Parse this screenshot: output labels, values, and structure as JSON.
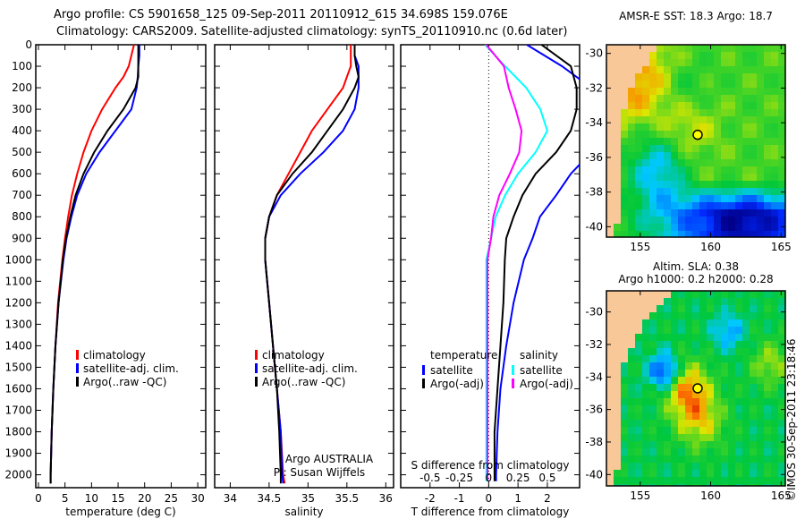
{
  "title_line1": "Argo profile: CS 5901658_125 09-Sep-2011 20110912_615 34.698S 159.076E",
  "title_line2": "Climatology: CARS2009. Satellite-adjusted climatology: synTS_20110910.nc (0.6d later)",
  "colors": {
    "clim": "#ff0000",
    "sat": "#0000ff",
    "argo": "#000000",
    "s_sat": "#00ffff",
    "s_argo": "#ff00ff"
  },
  "chart_data": [
    {
      "type": "line",
      "name": "temperature",
      "xlabel": "temperature (deg C)",
      "ylabel": "",
      "xlim": [
        -0.5,
        31.5
      ],
      "ylim": [
        2060,
        0
      ],
      "xticks": [
        "0",
        "5",
        "10",
        "15",
        "20",
        "25",
        "30"
      ],
      "xtick_values": [
        0,
        5,
        10,
        15,
        20,
        25,
        30
      ],
      "yticks": [
        "0",
        "100",
        "200",
        "300",
        "400",
        "500",
        "600",
        "700",
        "800",
        "900",
        "1000",
        "1100",
        "1200",
        "1300",
        "1400",
        "1500",
        "1600",
        "1700",
        "1800",
        "1900",
        "2000"
      ],
      "depth": [
        0,
        50,
        100,
        150,
        200,
        300,
        400,
        500,
        600,
        700,
        800,
        900,
        1000,
        1200,
        1400,
        1600,
        1800,
        2000,
        2040
      ],
      "series": [
        {
          "name": "climatology",
          "color": "#ff0000",
          "values": [
            18,
            17.5,
            17,
            16,
            14.5,
            12,
            10,
            8.5,
            7.3,
            6.3,
            5.6,
            5.0,
            4.5,
            3.7,
            3.2,
            2.8,
            2.5,
            2.3,
            2.3
          ]
        },
        {
          "name": "satellite-adj. clim.",
          "color": "#0000ff",
          "values": [
            19,
            19,
            18.8,
            18.7,
            18.5,
            17.5,
            14.5,
            11.5,
            9,
            7.3,
            6.2,
            5.3,
            4.7,
            3.8,
            3.2,
            2.8,
            2.5,
            2.3,
            2.3
          ]
        },
        {
          "name": "Argo(..raw -QC)",
          "color": "#000000",
          "values": [
            18.8,
            18.8,
            18.8,
            18.8,
            18.3,
            16,
            13,
            10.5,
            8.5,
            7,
            6,
            5.2,
            4.6,
            3.8,
            3.2,
            2.8,
            2.5,
            2.3,
            2.3
          ]
        }
      ],
      "legend_position": "bottom-center"
    },
    {
      "type": "line",
      "name": "salinity",
      "xlabel": "salinity",
      "xlim": [
        33.8,
        36.1
      ],
      "ylim": [
        2060,
        0
      ],
      "xticks": [
        "34",
        "34.5",
        "35",
        "35.5",
        "36"
      ],
      "xtick_values": [
        34,
        34.5,
        35,
        35.5,
        36
      ],
      "depth": [
        0,
        50,
        100,
        150,
        200,
        300,
        400,
        500,
        600,
        700,
        800,
        900,
        1000,
        1200,
        1400,
        1600,
        1800,
        2000,
        2040
      ],
      "series": [
        {
          "name": "climatology",
          "color": "#ff0000",
          "values": [
            35.55,
            35.55,
            35.55,
            35.5,
            35.45,
            35.25,
            35.05,
            34.9,
            34.75,
            34.6,
            34.5,
            34.45,
            34.45,
            34.5,
            34.55,
            34.6,
            34.65,
            34.68,
            34.7
          ]
        },
        {
          "name": "satellite-adj. clim.",
          "color": "#0000ff",
          "values": [
            35.6,
            35.6,
            35.65,
            35.65,
            35.65,
            35.6,
            35.45,
            35.2,
            34.9,
            34.65,
            34.5,
            34.45,
            34.45,
            34.5,
            34.55,
            34.6,
            34.65,
            34.67,
            34.68
          ]
        },
        {
          "name": "Argo(..raw -QC)",
          "color": "#000000",
          "values": [
            35.6,
            35.6,
            35.62,
            35.65,
            35.6,
            35.45,
            35.25,
            35.05,
            34.8,
            34.6,
            34.5,
            34.45,
            34.45,
            34.5,
            34.55,
            34.6,
            34.63,
            34.65,
            34.65
          ]
        }
      ],
      "annotation": [
        "Argo AUSTRALIA",
        "PI: Susan Wijffels"
      ]
    },
    {
      "type": "line",
      "name": "differences",
      "xlabel": "T difference from climatology",
      "x2label": "S difference from climatology",
      "xlim": [
        -3,
        3.1
      ],
      "x2lim": [
        -0.75,
        0.775
      ],
      "ylim": [
        2060,
        0
      ],
      "xticks": [
        "-2",
        "-1",
        "0",
        "1",
        "2"
      ],
      "xtick_values": [
        -2,
        -1,
        0,
        1,
        2
      ],
      "x2ticks": [
        "-0.5",
        "-0.25",
        "0",
        "0.25",
        "0.5"
      ],
      "x2tick_values": [
        -0.5,
        -0.25,
        0,
        0.25,
        0.5
      ],
      "depth": [
        0,
        100,
        200,
        300,
        400,
        500,
        600,
        700,
        800,
        900,
        1000,
        1200,
        1400,
        1600,
        1800,
        2000,
        2030
      ],
      "series": [
        {
          "name": "satellite",
          "group": "temperature",
          "axis": "T",
          "color": "#0000ff",
          "values": [
            1.3,
            2.5,
            3.5,
            4,
            4.2,
            3.5,
            2.8,
            2.3,
            1.75,
            1.5,
            1.2,
            0.85,
            0.6,
            0.4,
            0.3,
            0.25,
            0.25
          ]
        },
        {
          "name": "Argo(-adj)",
          "group": "temperature",
          "axis": "T",
          "color": "#000000",
          "values": [
            1.8,
            2.8,
            3,
            3,
            2.8,
            2.3,
            1.6,
            1.15,
            0.85,
            0.6,
            0.55,
            0.5,
            0.4,
            0.3,
            0.2,
            0.2,
            0.2
          ]
        },
        {
          "name": "satellite",
          "group": "salinity",
          "axis": "S",
          "color": "#00ffff",
          "values": [
            -0.03,
            0.14,
            0.32,
            0.44,
            0.5,
            0.4,
            0.25,
            0.14,
            0.06,
            0.02,
            -0.02,
            -0.02,
            -0.02,
            -0.02,
            -0.02,
            -0.02,
            -0.02
          ]
        },
        {
          "name": "Argo(-adj)",
          "group": "salinity",
          "axis": "S",
          "color": "#ff00ff",
          "values": [
            -0.02,
            0.13,
            0.17,
            0.23,
            0.28,
            0.26,
            0.18,
            0.09,
            0.04,
            0.02,
            -0.01,
            -0.01,
            -0.01,
            -0.01,
            -0.01,
            -0.01,
            -0.01
          ]
        }
      ],
      "legend_headers": [
        "temperature",
        "salinity"
      ]
    },
    {
      "type": "heatmap",
      "name": "sst-map",
      "title": "AMSR-E SST: 18.3 Argo: 18.7",
      "xticks": [
        "155",
        "160",
        "165"
      ],
      "xtick_values": [
        155,
        160,
        165
      ],
      "yticks": [
        "-30",
        "-32",
        "-34",
        "-36",
        "-38",
        "-40"
      ],
      "ytick_values": [
        -30,
        -32,
        -34,
        -36,
        -38,
        -40
      ],
      "xlim": [
        152.6,
        165.3
      ],
      "ylim": [
        -40.6,
        -29.5
      ],
      "marker": [
        159.076,
        -34.698
      ]
    },
    {
      "type": "heatmap",
      "name": "sla-map",
      "title_line1": "Altim. SLA: 0.38",
      "title_line2": "Argo h1000: 0.2 h2000: 0.28",
      "xticks": [
        "155",
        "160",
        "165"
      ],
      "xtick_values": [
        155,
        160,
        165
      ],
      "yticks": [
        "-30",
        "-32",
        "-34",
        "-36",
        "-38",
        "-40"
      ],
      "ytick_values": [
        -30,
        -32,
        -34,
        -36,
        -38,
        -40
      ],
      "xlim": [
        152.6,
        165.3
      ],
      "ylim": [
        -40.7,
        -28.7
      ],
      "marker": [
        159.076,
        -34.698
      ]
    }
  ],
  "credit": "©IMOS 30-Sep-2011 23:18:46"
}
